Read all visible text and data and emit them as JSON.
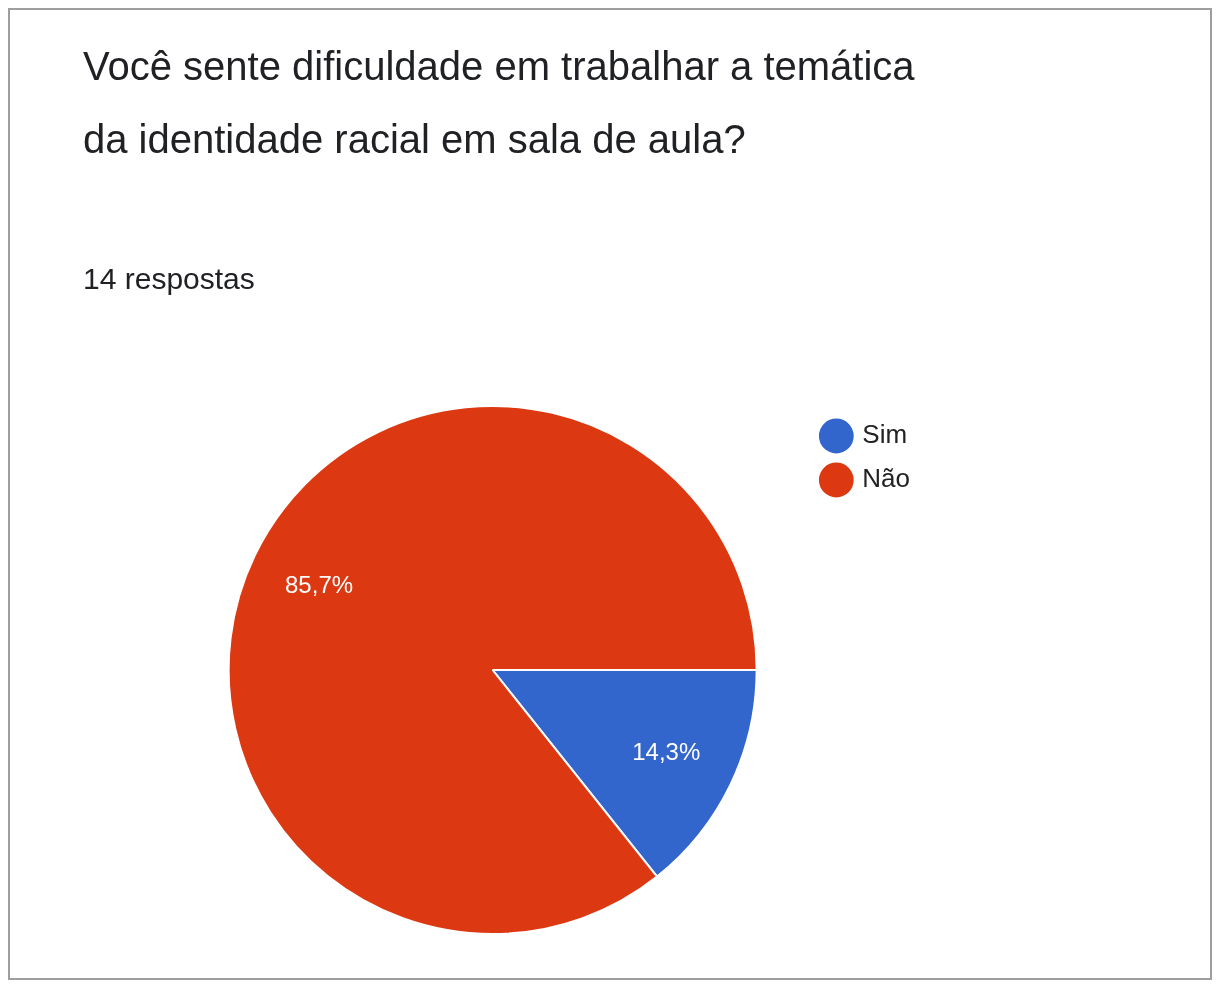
{
  "chart_data": {
    "type": "pie",
    "title": "Você sente dificuldade em trabalhar a temática da identidade racial em sala de aula?",
    "subtitle": "14 respostas",
    "categories": [
      "Sim",
      "Não"
    ],
    "values": [
      14.3,
      85.7
    ],
    "colors": [
      "#3366cc",
      "#dc3912"
    ],
    "value_labels": [
      "14,3%",
      "85,7%"
    ],
    "legend": "top right"
  }
}
